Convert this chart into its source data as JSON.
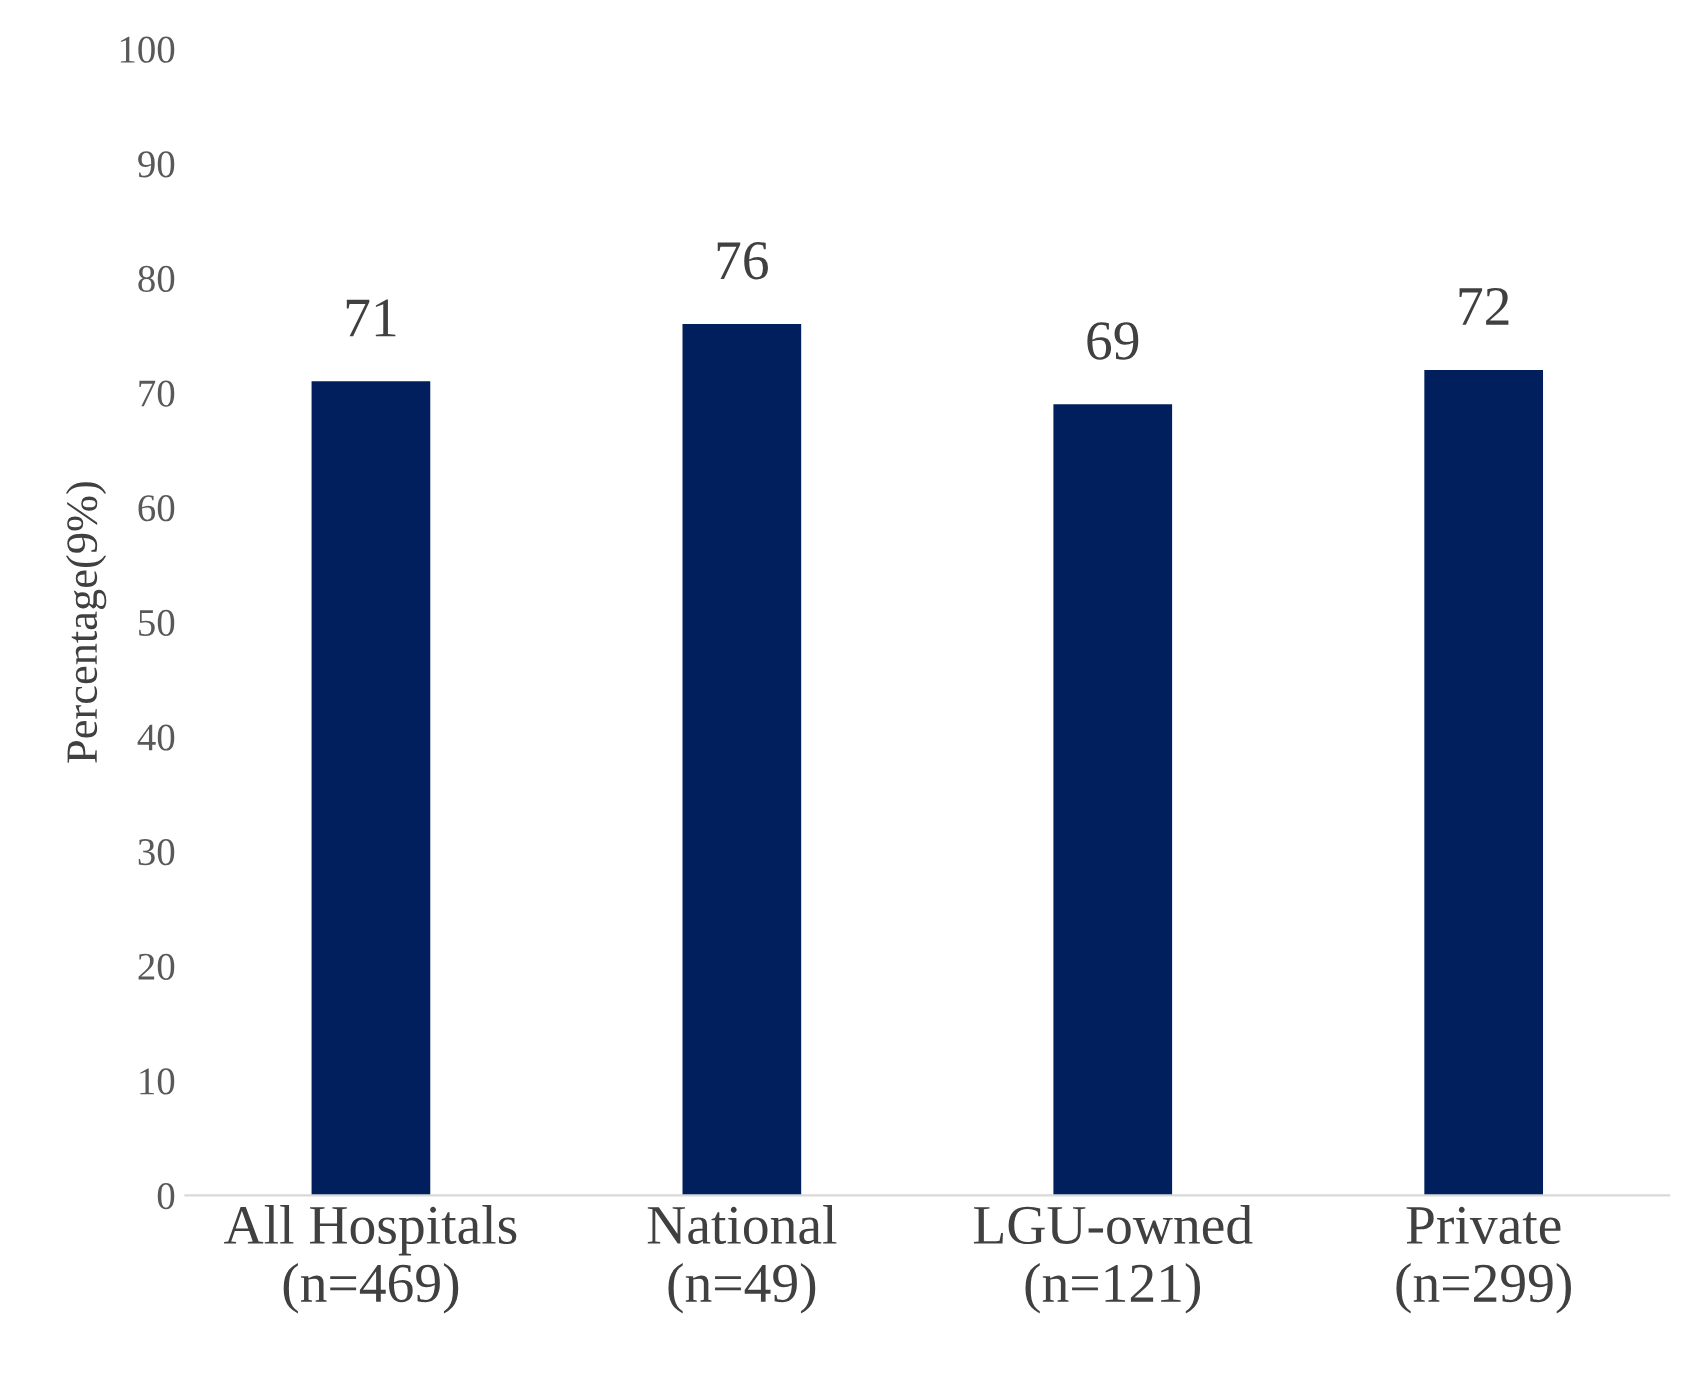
{
  "chart_data": {
    "type": "bar",
    "ylabel": "Percentage(9%)",
    "categories": [
      "All Hospitals\n(n=469)",
      "National\n(n=49)",
      "LGU-owned\n(n=121)",
      "Private\n(n=299)"
    ],
    "values": [
      71,
      76,
      69,
      72
    ],
    "color": "#001f5c",
    "data_labels": true,
    "ylim": [
      0,
      100
    ],
    "yticks": [
      0,
      10,
      20,
      30,
      40,
      50,
      60,
      70,
      80,
      90,
      100
    ],
    "grid": false,
    "legend": false
  }
}
